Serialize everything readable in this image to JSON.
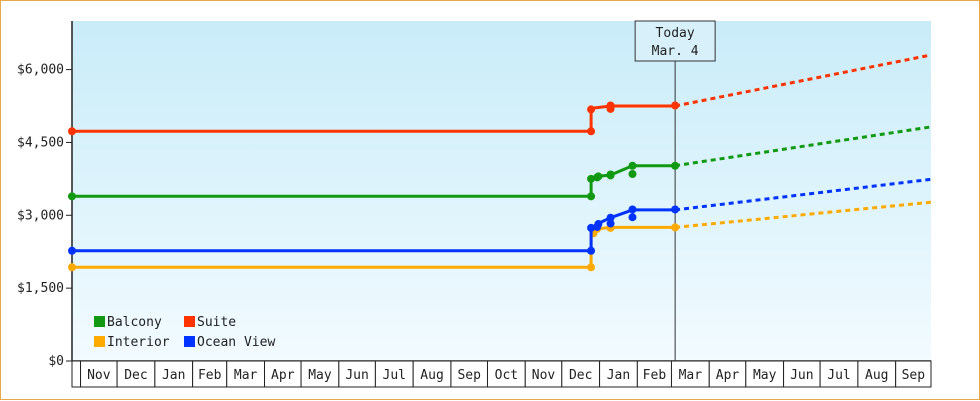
{
  "chart_data": {
    "type": "line",
    "title": "",
    "xlabel": "",
    "ylabel": "",
    "ylim": [
      0,
      7000
    ],
    "x_domain": [
      "2013-10-25",
      "2015-09-30"
    ],
    "y_ticks": [
      {
        "value": 0,
        "label": "$0"
      },
      {
        "value": 1500,
        "label": "$1,500"
      },
      {
        "value": 3000,
        "label": "$3,000"
      },
      {
        "value": 4500,
        "label": "$4,500"
      },
      {
        "value": 6000,
        "label": "$6,000"
      }
    ],
    "months": [
      {
        "label": "Nov",
        "start": "2013-11-01",
        "end": "2013-12-01"
      },
      {
        "label": "Dec",
        "start": "2013-12-01",
        "end": "2014-01-01"
      },
      {
        "label": "Jan",
        "start": "2014-01-01",
        "end": "2014-02-01"
      },
      {
        "label": "Feb",
        "start": "2014-02-01",
        "end": "2014-03-01"
      },
      {
        "label": "Mar",
        "start": "2014-03-01",
        "end": "2014-04-01"
      },
      {
        "label": "Apr",
        "start": "2014-04-01",
        "end": "2014-05-01"
      },
      {
        "label": "May",
        "start": "2014-05-01",
        "end": "2014-06-01"
      },
      {
        "label": "Jun",
        "start": "2014-06-01",
        "end": "2014-07-01"
      },
      {
        "label": "Jul",
        "start": "2014-07-01",
        "end": "2014-08-01"
      },
      {
        "label": "Aug",
        "start": "2014-08-01",
        "end": "2014-09-01"
      },
      {
        "label": "Sep",
        "start": "2014-09-01",
        "end": "2014-10-01"
      },
      {
        "label": "Oct",
        "start": "2014-10-01",
        "end": "2014-11-01"
      },
      {
        "label": "Nov",
        "start": "2014-11-01",
        "end": "2014-12-01"
      },
      {
        "label": "Dec",
        "start": "2014-12-01",
        "end": "2015-01-01"
      },
      {
        "label": "Jan",
        "start": "2015-01-01",
        "end": "2015-02-01"
      },
      {
        "label": "Feb",
        "start": "2015-02-01",
        "end": "2015-03-01"
      },
      {
        "label": "Mar",
        "start": "2015-03-01",
        "end": "2015-04-01"
      },
      {
        "label": "Apr",
        "start": "2015-04-01",
        "end": "2015-05-01"
      },
      {
        "label": "May",
        "start": "2015-05-01",
        "end": "2015-06-01"
      },
      {
        "label": "Jun",
        "start": "2015-06-01",
        "end": "2015-07-01"
      },
      {
        "label": "Jul",
        "start": "2015-07-01",
        "end": "2015-08-01"
      },
      {
        "label": "Aug",
        "start": "2015-08-01",
        "end": "2015-09-01"
      },
      {
        "label": "Sep",
        "start": "2015-09-01",
        "end": "2015-10-01"
      }
    ],
    "today": {
      "date": "2015-03-04",
      "line1": "Today",
      "line2": "Mar. 4"
    },
    "grid": false,
    "legend_position": "bottom-left",
    "series": [
      {
        "name": "Balcony",
        "color": "#119911",
        "points": [
          [
            "2013-10-25",
            3390
          ],
          [
            "2014-12-25",
            3390
          ],
          [
            "2014-12-25",
            3750
          ],
          [
            "2014-12-30",
            3800
          ],
          [
            "2015-01-10",
            3830
          ],
          [
            "2015-01-28",
            4020
          ],
          [
            "2015-03-04",
            4020
          ]
        ],
        "markers": [
          [
            "2013-10-25",
            3390
          ],
          [
            "2014-12-25",
            3390
          ],
          [
            "2014-12-25",
            3750
          ],
          [
            "2014-12-30",
            3780
          ],
          [
            "2014-12-31",
            3800
          ],
          [
            "2015-01-10",
            3820
          ],
          [
            "2015-01-10",
            3840
          ],
          [
            "2015-01-28",
            3850
          ],
          [
            "2015-01-28",
            4020
          ],
          [
            "2015-03-04",
            4020
          ]
        ],
        "forecast": [
          [
            "2015-03-04",
            4020
          ],
          [
            "2015-09-30",
            4820
          ]
        ]
      },
      {
        "name": "Suite",
        "color": "#ff3300",
        "points": [
          [
            "2013-10-25",
            4730
          ],
          [
            "2014-12-25",
            4730
          ],
          [
            "2014-12-25",
            5200
          ],
          [
            "2015-01-10",
            5250
          ],
          [
            "2015-03-04",
            5250
          ]
        ],
        "markers": [
          [
            "2013-10-25",
            4730
          ],
          [
            "2014-12-25",
            4730
          ],
          [
            "2014-12-25",
            5180
          ],
          [
            "2015-01-10",
            5190
          ],
          [
            "2015-01-10",
            5260
          ],
          [
            "2015-03-04",
            5260
          ]
        ],
        "forecast": [
          [
            "2015-03-04",
            5250
          ],
          [
            "2015-09-30",
            6300
          ]
        ]
      },
      {
        "name": "Interior",
        "color": "#ffaa00",
        "points": [
          [
            "2013-10-25",
            1930
          ],
          [
            "2014-12-25",
            1930
          ],
          [
            "2014-12-25",
            2620
          ],
          [
            "2014-12-30",
            2720
          ],
          [
            "2015-01-10",
            2750
          ],
          [
            "2015-03-04",
            2750
          ]
        ],
        "markers": [
          [
            "2013-10-25",
            1930
          ],
          [
            "2014-12-25",
            1930
          ],
          [
            "2014-12-27",
            2630
          ],
          [
            "2014-12-30",
            2720
          ],
          [
            "2015-01-10",
            2740
          ],
          [
            "2015-03-04",
            2750
          ]
        ],
        "forecast": [
          [
            "2015-03-04",
            2750
          ],
          [
            "2015-09-30",
            3270
          ]
        ]
      },
      {
        "name": "Ocean View",
        "color": "#0033ff",
        "points": [
          [
            "2013-10-25",
            2270
          ],
          [
            "2014-12-25",
            2270
          ],
          [
            "2014-12-25",
            2730
          ],
          [
            "2014-12-30",
            2820
          ],
          [
            "2015-01-10",
            2950
          ],
          [
            "2015-01-28",
            3110
          ],
          [
            "2015-03-04",
            3110
          ]
        ],
        "markers": [
          [
            "2013-10-25",
            2270
          ],
          [
            "2014-12-25",
            2270
          ],
          [
            "2014-12-25",
            2740
          ],
          [
            "2014-12-30",
            2760
          ],
          [
            "2014-12-31",
            2820
          ],
          [
            "2015-01-10",
            2830
          ],
          [
            "2015-01-10",
            2950
          ],
          [
            "2015-01-28",
            2960
          ],
          [
            "2015-01-28",
            3120
          ],
          [
            "2015-03-04",
            3120
          ]
        ],
        "forecast": [
          [
            "2015-03-04",
            3110
          ],
          [
            "2015-09-30",
            3740
          ]
        ]
      }
    ]
  }
}
